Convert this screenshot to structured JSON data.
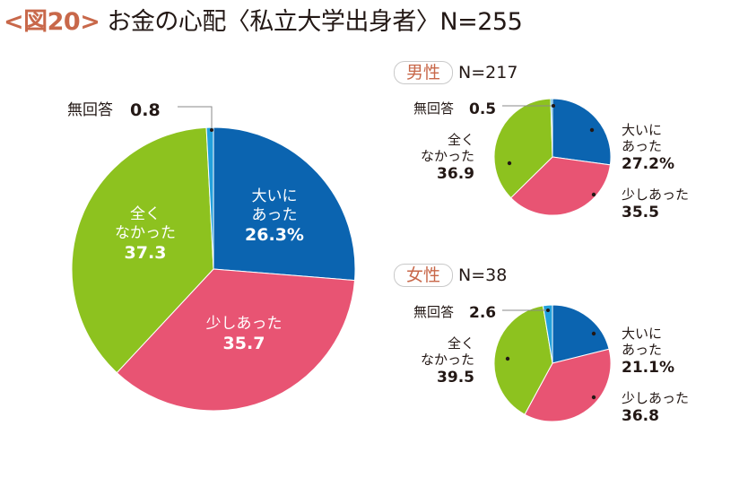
{
  "title": {
    "fig": "<図20>",
    "main": "お金の心配〈私立大学出身者〉N=255"
  },
  "colors": {
    "blue": "#0b64b0",
    "pink": "#e85473",
    "green": "#8dc21f",
    "cyan": "#22a0dc",
    "title_accent": "#c8684a"
  },
  "chart_data": [
    {
      "type": "pie",
      "title": "",
      "slices": [
        {
          "name": "大いにあった",
          "value": 26.3,
          "color": "#0b64b0",
          "label_lines": [
            "大いに",
            "あった"
          ],
          "value_label": "26.3%"
        },
        {
          "name": "少しあった",
          "value": 35.7,
          "color": "#e85473",
          "label_lines": [
            "少しあった"
          ],
          "value_label": "35.7"
        },
        {
          "name": "全くなかった",
          "value": 37.3,
          "color": "#8dc21f",
          "label_lines": [
            "全く",
            "なかった"
          ],
          "value_label": "37.3"
        },
        {
          "name": "無回答",
          "value": 0.8,
          "color": "#22a0dc",
          "label_lines": [
            "無回答"
          ],
          "value_label": "0.8"
        }
      ]
    },
    {
      "type": "pie",
      "group": "男性",
      "n": "N=217",
      "slices": [
        {
          "name": "大いにあった",
          "value": 27.2,
          "color": "#0b64b0",
          "label_lines": [
            "大いに",
            "あった"
          ],
          "value_label": "27.2%"
        },
        {
          "name": "少しあった",
          "value": 35.5,
          "color": "#e85473",
          "label_lines": [
            "少しあった"
          ],
          "value_label": "35.5"
        },
        {
          "name": "全くなかった",
          "value": 36.9,
          "color": "#8dc21f",
          "label_lines": [
            "全く",
            "なかった"
          ],
          "value_label": "36.9"
        },
        {
          "name": "無回答",
          "value": 0.5,
          "color": "#22a0dc",
          "label_lines": [
            "無回答"
          ],
          "value_label": "0.5"
        }
      ]
    },
    {
      "type": "pie",
      "group": "女性",
      "n": "N=38",
      "slices": [
        {
          "name": "大いにあった",
          "value": 21.1,
          "color": "#0b64b0",
          "label_lines": [
            "大いに",
            "あった"
          ],
          "value_label": "21.1%"
        },
        {
          "name": "少しあった",
          "value": 36.8,
          "color": "#e85473",
          "label_lines": [
            "少しあった"
          ],
          "value_label": "36.8"
        },
        {
          "name": "全くなかった",
          "value": 39.5,
          "color": "#8dc21f",
          "label_lines": [
            "全く",
            "なかった"
          ],
          "value_label": "39.5"
        },
        {
          "name": "無回答",
          "value": 2.6,
          "color": "#22a0dc",
          "label_lines": [
            "無回答"
          ],
          "value_label": "2.6"
        }
      ]
    }
  ]
}
